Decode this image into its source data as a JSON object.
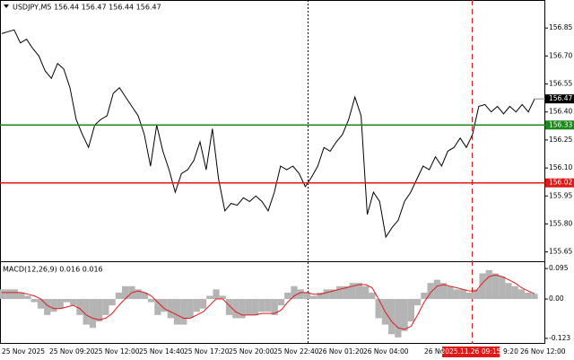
{
  "chart_data": [
    {
      "type": "line",
      "title": "USDJPY,M5  156.44 156.47 156.44 156.47",
      "color": "#000000",
      "values": [
        156.82,
        156.83,
        156.84,
        156.77,
        156.79,
        156.74,
        156.7,
        156.62,
        156.58,
        156.66,
        156.63,
        156.53,
        156.36,
        156.28,
        156.21,
        156.33,
        156.36,
        156.38,
        156.5,
        156.53,
        156.48,
        156.43,
        156.38,
        156.28,
        156.11,
        156.33,
        156.19,
        156.09,
        155.97,
        156.07,
        156.09,
        156.14,
        156.24,
        156.09,
        156.31,
        156.04,
        155.87,
        155.91,
        155.9,
        155.94,
        155.92,
        155.95,
        155.92,
        155.87,
        155.97,
        156.11,
        156.09,
        156.11,
        156.07,
        156.0,
        156.05,
        156.11,
        156.21,
        156.19,
        156.24,
        156.28,
        156.36,
        156.48,
        156.38,
        155.85,
        155.97,
        155.92,
        155.73,
        155.78,
        155.82,
        155.92,
        155.97,
        156.04,
        156.11,
        156.09,
        156.16,
        156.11,
        156.19,
        156.21,
        156.26,
        156.21,
        156.28,
        156.43,
        156.44,
        156.4,
        156.43,
        156.39,
        156.43,
        156.4,
        156.44,
        156.4,
        156.47
      ],
      "ylim": [
        155.6,
        157.0
      ],
      "yticks": [
        156.85,
        {
          "value": 156.7,
          "label": "156.70"
        },
        156.55,
        {
          "value": 156.4,
          "label": "156.40"
        },
        156.25,
        {
          "value": 156.1,
          "label": "156.10"
        },
        155.95,
        {
          "value": 155.8,
          "label": "155.80"
        },
        155.65
      ],
      "levels": [
        {
          "value": 156.33,
          "color": "#1a8a1a"
        },
        {
          "value": 156.02,
          "color": "#e01818"
        }
      ],
      "last": 156.47,
      "x_labels": [
        "25 Nov 2025",
        "25 Nov 09:20",
        "25 Nov 12:00",
        "25 Nov 14:40",
        "25 Nov 17:20",
        "25 Nov 20:00",
        "25 Nov 22:40",
        "26 Nov 01:20",
        "26 Nov 04:00",
        "26 No",
        "9:20",
        "26 Nov 12:00"
      ],
      "vline_label": "2025.11.26 09:15"
    },
    {
      "type": "macd",
      "title": "MACD(12,26,9) 0.016 0.016",
      "series": [
        {
          "color": "#b4b4b4",
          "values": [
            0.03,
            0.03,
            0.03,
            0.02,
            0.01,
            -0.01,
            -0.03,
            -0.05,
            -0.04,
            -0.03,
            -0.01,
            -0.02,
            -0.05,
            -0.08,
            -0.09,
            -0.07,
            -0.05,
            -0.02,
            0.02,
            0.04,
            0.04,
            0.03,
            0.02,
            -0.01,
            -0.05,
            -0.04,
            -0.06,
            -0.08,
            -0.08,
            -0.06,
            -0.04,
            -0.03,
            0.01,
            0.03,
            0.01,
            -0.05,
            -0.06,
            -0.06,
            -0.05,
            -0.05,
            -0.04,
            -0.04,
            -0.05,
            -0.02,
            0.02,
            0.04,
            0.03,
            0.02,
            0.01,
            0.02,
            0.03,
            0.03,
            0.04,
            0.04,
            0.05,
            0.05,
            0.04,
            0.02,
            -0.06,
            -0.08,
            -0.11,
            -0.12,
            -0.1,
            -0.07,
            -0.02,
            0.02,
            0.05,
            0.06,
            0.05,
            0.04,
            0.03,
            0.03,
            0.02,
            0.03,
            0.08,
            0.09,
            0.08,
            0.07,
            0.05,
            0.04,
            0.03,
            0.02,
            0.016
          ]
        },
        {
          "color": "#e01818",
          "values": [
            0.02,
            0.02,
            0.02,
            0.02,
            0.015,
            0.01,
            0.0,
            -0.02,
            -0.03,
            -0.03,
            -0.025,
            -0.02,
            -0.03,
            -0.05,
            -0.06,
            -0.065,
            -0.06,
            -0.045,
            -0.02,
            0.0,
            0.02,
            0.025,
            0.02,
            0.01,
            -0.01,
            -0.03,
            -0.04,
            -0.05,
            -0.06,
            -0.06,
            -0.05,
            -0.04,
            -0.02,
            0.0,
            0.0,
            -0.02,
            -0.04,
            -0.05,
            -0.05,
            -0.05,
            -0.045,
            -0.045,
            -0.045,
            -0.035,
            -0.01,
            0.01,
            0.02,
            0.02,
            0.015,
            0.015,
            0.02,
            0.025,
            0.03,
            0.035,
            0.04,
            0.045,
            0.045,
            0.035,
            0.0,
            -0.04,
            -0.07,
            -0.09,
            -0.095,
            -0.085,
            -0.05,
            -0.01,
            0.02,
            0.04,
            0.045,
            0.04,
            0.035,
            0.03,
            0.025,
            0.025,
            0.05,
            0.07,
            0.075,
            0.07,
            0.06,
            0.05,
            0.035,
            0.025,
            0.016
          ]
        }
      ],
      "ylim": [
        -0.14,
        0.115
      ],
      "yticks": [
        0.095,
        {
          "value": 0,
          "label": "0.00"
        },
        -0.123
      ]
    }
  ]
}
